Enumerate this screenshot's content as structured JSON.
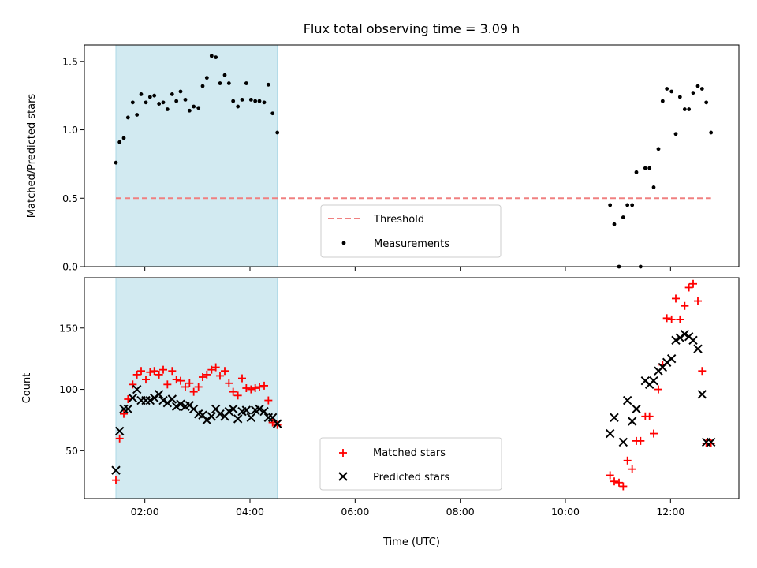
{
  "title": "Flux total observing time = 3.09 h",
  "colors": {
    "shade": "#add8e6",
    "threshold": "#f08080",
    "matched": "#ff0000",
    "predicted": "#000000",
    "measurement": "#000000"
  },
  "chart_data": [
    {
      "type": "scatter",
      "panel": "top",
      "title": "Flux total observing time = 3.09 h",
      "xlabel": "",
      "ylabel": "Matched/Predicted stars",
      "x_unit": "hours UTC",
      "xlim": [
        0.85,
        13.3
      ],
      "ylim": [
        0,
        1.62
      ],
      "yticks": [
        "0.0",
        "0.5",
        "1.0",
        "1.5"
      ],
      "ytick_values": [
        0,
        0.5,
        1.0,
        1.5
      ],
      "shaded_interval": [
        1.45,
        4.52
      ],
      "threshold": {
        "label": "Threshold",
        "value": 0.5,
        "x_start": 1.45,
        "x_end": 12.77,
        "style": "dashed"
      },
      "legend": {
        "position": "lower-center",
        "entries": [
          "Threshold",
          "Measurements"
        ]
      },
      "series": [
        {
          "name": "Measurements",
          "marker": "dot",
          "x": [
            1.45,
            1.52,
            1.6,
            1.68,
            1.77,
            1.85,
            1.93,
            2.02,
            2.1,
            2.18,
            2.27,
            2.35,
            2.43,
            2.52,
            2.6,
            2.68,
            2.77,
            2.85,
            2.93,
            3.02,
            3.1,
            3.18,
            3.27,
            3.35,
            3.43,
            3.52,
            3.6,
            3.68,
            3.77,
            3.85,
            3.93,
            4.02,
            4.1,
            4.18,
            4.27,
            4.35,
            4.43,
            4.52,
            10.85,
            10.93,
            11.02,
            11.1,
            11.18,
            11.27,
            11.35,
            11.43,
            11.52,
            11.6,
            11.68,
            11.77,
            11.85,
            11.93,
            12.02,
            12.1,
            12.18,
            12.27,
            12.35,
            12.43,
            12.52,
            12.6,
            12.68,
            12.77
          ],
          "y": [
            0.76,
            0.91,
            0.94,
            1.09,
            1.2,
            1.11,
            1.26,
            1.2,
            1.24,
            1.25,
            1.19,
            1.2,
            1.15,
            1.26,
            1.21,
            1.28,
            1.22,
            1.14,
            1.17,
            1.16,
            1.32,
            1.38,
            1.54,
            1.53,
            1.34,
            1.4,
            1.34,
            1.21,
            1.17,
            1.22,
            1.34,
            1.22,
            1.21,
            1.21,
            1.2,
            1.33,
            1.12,
            0.98,
            0.45,
            0.31,
            0.0,
            0.36,
            0.45,
            0.45,
            0.69,
            0.0,
            0.72,
            0.72,
            0.58,
            0.86,
            1.21,
            1.3,
            1.28,
            0.97,
            1.24,
            1.15,
            1.15,
            1.27,
            1.32,
            1.3,
            1.2,
            0.98
          ]
        }
      ]
    },
    {
      "type": "scatter",
      "panel": "bottom",
      "xlabel": "Time (UTC)",
      "ylabel": "Count",
      "x_unit": "hours UTC",
      "xlim": [
        0.85,
        13.3
      ],
      "ylim": [
        11,
        191
      ],
      "xticks": [
        "02:00",
        "04:00",
        "06:00",
        "08:00",
        "10:00",
        "12:00"
      ],
      "xtick_values": [
        2,
        4,
        6,
        8,
        10,
        12
      ],
      "yticks": [
        "50",
        "100",
        "150"
      ],
      "ytick_values": [
        50,
        100,
        150
      ],
      "shaded_interval": [
        1.45,
        4.52
      ],
      "legend": {
        "position": "lower-center",
        "entries": [
          "Matched stars",
          "Predicted stars"
        ]
      },
      "series": [
        {
          "name": "Matched stars",
          "marker": "plus",
          "x": [
            1.45,
            1.52,
            1.6,
            1.68,
            1.77,
            1.85,
            1.93,
            2.02,
            2.1,
            2.18,
            2.27,
            2.35,
            2.43,
            2.52,
            2.6,
            2.68,
            2.77,
            2.85,
            2.93,
            3.02,
            3.1,
            3.18,
            3.27,
            3.35,
            3.43,
            3.52,
            3.6,
            3.68,
            3.77,
            3.85,
            3.93,
            4.02,
            4.1,
            4.18,
            4.27,
            4.35,
            4.43,
            4.52,
            10.85,
            10.93,
            11.02,
            11.1,
            11.18,
            11.27,
            11.35,
            11.43,
            11.52,
            11.6,
            11.68,
            11.77,
            11.85,
            11.93,
            12.02,
            12.1,
            12.18,
            12.27,
            12.35,
            12.43,
            12.52,
            12.6,
            12.68,
            12.77
          ],
          "y": [
            26,
            60,
            80,
            92,
            104,
            112,
            115,
            108,
            114,
            115,
            112,
            116,
            104,
            115,
            108,
            107,
            102,
            105,
            98,
            102,
            110,
            112,
            116,
            118,
            111,
            115,
            105,
            98,
            95,
            109,
            101,
            100,
            101,
            102,
            103,
            91,
            73,
            71,
            30,
            25,
            24,
            21,
            42,
            35,
            58,
            58,
            78,
            78,
            64,
            100,
            120,
            158,
            157,
            174,
            157,
            168,
            183,
            186,
            172,
            115,
            56,
            56
          ],
          "note_skip_draw": false
        },
        {
          "name": "Predicted stars",
          "marker": "x",
          "x": [
            1.45,
            1.52,
            1.6,
            1.68,
            1.77,
            1.85,
            1.93,
            2.02,
            2.1,
            2.18,
            2.27,
            2.35,
            2.43,
            2.52,
            2.6,
            2.68,
            2.77,
            2.85,
            2.93,
            3.02,
            3.1,
            3.18,
            3.27,
            3.35,
            3.43,
            3.52,
            3.6,
            3.68,
            3.77,
            3.85,
            3.93,
            4.02,
            4.1,
            4.18,
            4.27,
            4.35,
            4.43,
            4.52,
            10.85,
            10.93,
            11.1,
            11.18,
            11.27,
            11.35,
            11.52,
            11.6,
            11.68,
            11.77,
            11.85,
            11.93,
            12.02,
            12.1,
            12.18,
            12.27,
            12.35,
            12.43,
            12.52,
            12.6,
            12.68,
            12.77
          ],
          "y": [
            34,
            66,
            84,
            84,
            93,
            100,
            91,
            91,
            91,
            93,
            96,
            91,
            89,
            92,
            86,
            88,
            86,
            87,
            84,
            80,
            79,
            75,
            78,
            84,
            80,
            78,
            82,
            84,
            76,
            82,
            83,
            77,
            83,
            84,
            82,
            77,
            77,
            72,
            64,
            77,
            57,
            91,
            74,
            84,
            107,
            104,
            107,
            115,
            118,
            122,
            125,
            140,
            142,
            145,
            143,
            140,
            133,
            96,
            57,
            57
          ]
        }
      ]
    }
  ]
}
